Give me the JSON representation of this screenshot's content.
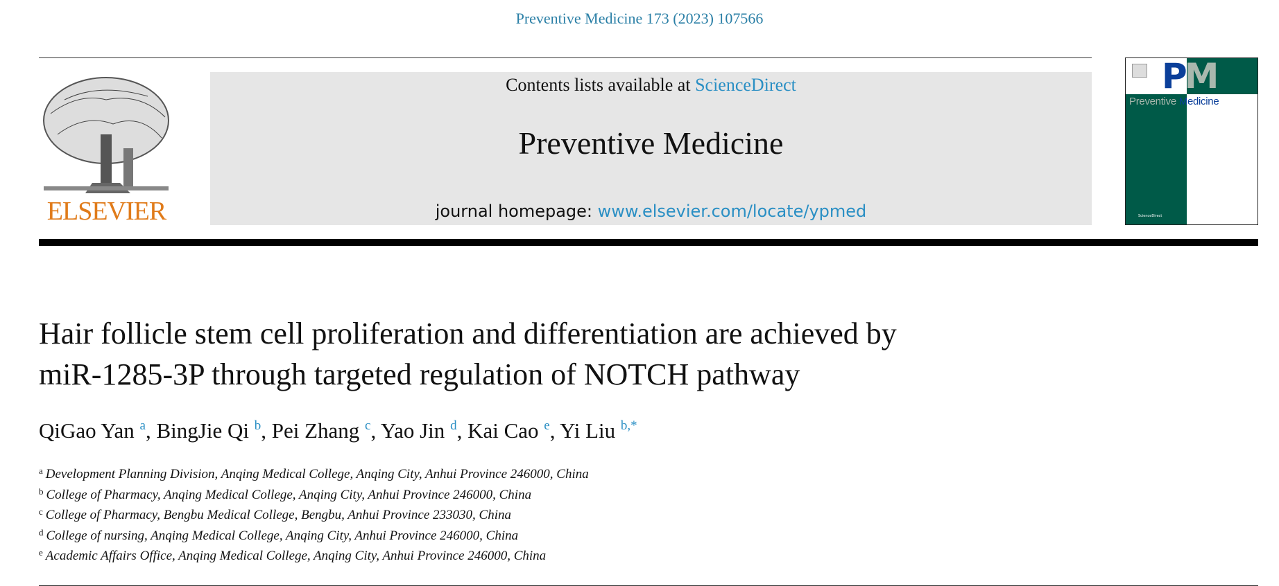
{
  "header": {
    "journal_reference": "Preventive Medicine 173 (2023) 107566",
    "publisher_logo_text": "ELSEVIER",
    "contents_prefix": "Contents lists available at ",
    "contents_link": "ScienceDirect",
    "journal_title": "Preventive Medicine",
    "homepage_prefix": "journal homepage: ",
    "homepage_link": "www.elsevier.com/locate/ypmed",
    "cover": {
      "letters": "PM",
      "title_a": "Preventive ",
      "title_b": "Medicine",
      "footer": "ScienceDirect"
    }
  },
  "article": {
    "title_line1": "Hair follicle stem cell proliferation and differentiation are achieved by",
    "title_line2": "miR-1285-3P through targeted regulation of NOTCH pathway",
    "authors": [
      {
        "name": "QiGao Yan",
        "sup": "a"
      },
      {
        "name": "BingJie Qi",
        "sup": "b"
      },
      {
        "name": "Pei Zhang",
        "sup": "c"
      },
      {
        "name": "Yao Jin",
        "sup": "d"
      },
      {
        "name": "Kai Cao",
        "sup": "e"
      },
      {
        "name": "Yi Liu",
        "sup": "b,*"
      }
    ],
    "affiliations": [
      {
        "key": "a",
        "text": "Development Planning Division, Anqing Medical  College, Anqing City, Anhui Province 246000, China"
      },
      {
        "key": "b",
        "text": "College of Pharmacy, Anqing Medical  College, Anqing City, Anhui Province 246000, China"
      },
      {
        "key": "c",
        "text": "College of Pharmacy, Bengbu Medical College, Bengbu, Anhui Province 233030, China"
      },
      {
        "key": "d",
        "text": "College of nursing, Anqing Medical College, Anqing City, Anhui Province 246000, China"
      },
      {
        "key": "e",
        "text": "Academic Affairs Office, Anqing Medical College, Anqing City, Anhui Province 246000, China"
      }
    ]
  },
  "colors": {
    "link": "#2a8fc4",
    "elsevier_orange": "#e07b1a",
    "cover_green": "#005a48",
    "cover_blue": "#0b3f9a"
  }
}
